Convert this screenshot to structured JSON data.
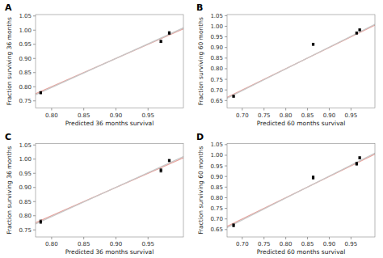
{
  "chart_data": [
    {
      "type": "scatter",
      "title": "A",
      "x_label": "Predicted 36 months survival",
      "y_label": "Fraction surviving 36 months",
      "xlim": [
        0.775,
        1.005
      ],
      "ylim": [
        0.725,
        1.055
      ],
      "xticks": [
        {
          "value": 0.8,
          "label": "0.80"
        },
        {
          "value": 0.85,
          "label": "0.85"
        },
        {
          "value": 0.9,
          "label": "0.90"
        },
        {
          "value": 0.95,
          "label": "0.95"
        }
      ],
      "yticks": [
        {
          "value": 0.75,
          "label": "0.75"
        },
        {
          "value": 0.8,
          "label": "0.80"
        },
        {
          "value": 0.85,
          "label": "0.85"
        },
        {
          "value": 0.9,
          "label": "0.90"
        },
        {
          "value": 0.95,
          "label": "0.95"
        },
        {
          "value": 1.0,
          "label": "1.00"
        },
        {
          "value": 1.05,
          "label": "1.05"
        }
      ],
      "series": [
        {
          "type": "line",
          "color": "#e8a09a",
          "line_style": "solid",
          "x": [
            0.775,
            1.005
          ],
          "values": [
            0.775,
            1.005
          ]
        },
        {
          "type": "line",
          "color": "#c8c8c8",
          "line_style": "solid",
          "x": [
            0.775,
            1.005
          ],
          "values": [
            0.7715,
            1.008
          ]
        },
        {
          "type": "scatter",
          "color": "#000000",
          "marker": "square",
          "x": [
            0.783,
            0.97,
            0.983
          ],
          "values": [
            0.779,
            0.96,
            0.99
          ],
          "err_low": [
            0.004,
            0.004,
            0.005
          ],
          "err_high": [
            0.004,
            0.004,
            0.005
          ]
        }
      ]
    },
    {
      "type": "scatter",
      "title": "B",
      "x_label": "Predicted 60 months survival",
      "y_label": "Fraction surviving 60 months",
      "xlim": [
        0.665,
        1.005
      ],
      "ylim": [
        0.615,
        1.055
      ],
      "xticks": [
        {
          "value": 0.7,
          "label": "0.70"
        },
        {
          "value": 0.75,
          "label": "0.75"
        },
        {
          "value": 0.8,
          "label": "0.80"
        },
        {
          "value": 0.85,
          "label": "0.85"
        },
        {
          "value": 0.9,
          "label": "0.90"
        },
        {
          "value": 0.95,
          "label": "0.95"
        }
      ],
      "yticks": [
        {
          "value": 0.65,
          "label": "0.65"
        },
        {
          "value": 0.7,
          "label": "0.70"
        },
        {
          "value": 0.75,
          "label": "0.75"
        },
        {
          "value": 0.8,
          "label": "0.80"
        },
        {
          "value": 0.85,
          "label": "0.85"
        },
        {
          "value": 0.9,
          "label": "0.90"
        },
        {
          "value": 0.95,
          "label": "0.95"
        },
        {
          "value": 1.0,
          "label": "1.00"
        },
        {
          "value": 1.05,
          "label": "1.05"
        }
      ],
      "series": [
        {
          "type": "line",
          "color": "#e8a09a",
          "line_style": "solid",
          "x": [
            0.665,
            1.005
          ],
          "values": [
            0.665,
            1.005
          ]
        },
        {
          "type": "line",
          "color": "#c8c8c8",
          "line_style": "solid",
          "x": [
            0.665,
            1.005
          ],
          "values": [
            0.661,
            1.009
          ]
        },
        {
          "type": "scatter",
          "color": "#000000",
          "marker": "square",
          "x": [
            0.68,
            0.863,
            0.963,
            0.97
          ],
          "values": [
            0.67,
            0.915,
            0.968,
            0.983
          ],
          "err_low": [
            0.004,
            0.005,
            0.005,
            0.004
          ],
          "err_high": [
            0.004,
            0.005,
            0.005,
            0.004
          ]
        }
      ]
    },
    {
      "type": "scatter",
      "title": "C",
      "x_label": "Predicted 36 months survival",
      "y_label": "Fraction surviving 36 months",
      "xlim": [
        0.775,
        1.005
      ],
      "ylim": [
        0.725,
        1.055
      ],
      "xticks": [
        {
          "value": 0.8,
          "label": "0.80"
        },
        {
          "value": 0.85,
          "label": "0.85"
        },
        {
          "value": 0.9,
          "label": "0.90"
        },
        {
          "value": 0.95,
          "label": "0.95"
        }
      ],
      "yticks": [
        {
          "value": 0.75,
          "label": "0.75"
        },
        {
          "value": 0.8,
          "label": "0.80"
        },
        {
          "value": 0.85,
          "label": "0.85"
        },
        {
          "value": 0.9,
          "label": "0.90"
        },
        {
          "value": 0.95,
          "label": "0.95"
        },
        {
          "value": 1.0,
          "label": "1.00"
        },
        {
          "value": 1.05,
          "label": "1.05"
        }
      ],
      "series": [
        {
          "type": "line",
          "color": "#e8a09a",
          "line_style": "solid",
          "x": [
            0.775,
            1.005
          ],
          "values": [
            0.775,
            1.005
          ]
        },
        {
          "type": "line",
          "color": "#c8c8c8",
          "line_style": "solid",
          "x": [
            0.775,
            1.005
          ],
          "values": [
            0.771,
            1.009
          ]
        },
        {
          "type": "scatter",
          "color": "#000000",
          "marker": "square",
          "x": [
            0.783,
            0.97,
            0.983
          ],
          "values": [
            0.779,
            0.96,
            0.995
          ],
          "err_low": [
            0.006,
            0.006,
            0.004
          ],
          "err_high": [
            0.006,
            0.006,
            0.004
          ]
        }
      ]
    },
    {
      "type": "scatter",
      "title": "D",
      "x_label": "Predicted 60 months survival",
      "y_label": "Fraction surviving 60 months",
      "xlim": [
        0.665,
        1.005
      ],
      "ylim": [
        0.615,
        1.055
      ],
      "xticks": [
        {
          "value": 0.7,
          "label": "0.70"
        },
        {
          "value": 0.75,
          "label": "0.75"
        },
        {
          "value": 0.8,
          "label": "0.80"
        },
        {
          "value": 0.85,
          "label": "0.85"
        },
        {
          "value": 0.9,
          "label": "0.90"
        },
        {
          "value": 0.95,
          "label": "0.95"
        }
      ],
      "yticks": [
        {
          "value": 0.65,
          "label": "0.65"
        },
        {
          "value": 0.7,
          "label": "0.70"
        },
        {
          "value": 0.75,
          "label": "0.75"
        },
        {
          "value": 0.8,
          "label": "0.80"
        },
        {
          "value": 0.85,
          "label": "0.85"
        },
        {
          "value": 0.9,
          "label": "0.90"
        },
        {
          "value": 0.95,
          "label": "0.95"
        },
        {
          "value": 1.0,
          "label": "1.00"
        },
        {
          "value": 1.05,
          "label": "1.05"
        }
      ],
      "series": [
        {
          "type": "line",
          "color": "#e8a09a",
          "line_style": "solid",
          "x": [
            0.665,
            1.005
          ],
          "values": [
            0.665,
            1.005
          ]
        },
        {
          "type": "line",
          "color": "#c8c8c8",
          "line_style": "solid",
          "x": [
            0.665,
            1.005
          ],
          "values": [
            0.659,
            1.01
          ]
        },
        {
          "type": "scatter",
          "color": "#000000",
          "marker": "square",
          "x": [
            0.68,
            0.863,
            0.963,
            0.97
          ],
          "values": [
            0.67,
            0.895,
            0.96,
            0.988
          ],
          "err_low": [
            0.007,
            0.008,
            0.007,
            0.005
          ],
          "err_high": [
            0.007,
            0.008,
            0.007,
            0.005
          ]
        }
      ]
    }
  ]
}
